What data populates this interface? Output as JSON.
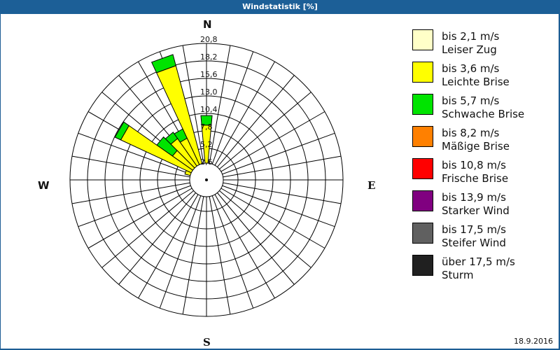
{
  "window": {
    "title": "Windstatistik [%]"
  },
  "footer": {
    "date": "18.9.2016"
  },
  "compass": {
    "n": "N",
    "e": "E",
    "s": "S",
    "w": "W"
  },
  "legend": [
    {
      "speed": "bis 2,1 m/s",
      "name": "Leiser Zug",
      "color": "#ffffc8"
    },
    {
      "speed": "bis 3,6 m/s",
      "name": "Leichte Brise",
      "color": "#ffff00"
    },
    {
      "speed": "bis 5,7 m/s",
      "name": "Schwache Brise",
      "color": "#00e400"
    },
    {
      "speed": "bis 8,2 m/s",
      "name": "Mäßige Brise",
      "color": "#ff8000"
    },
    {
      "speed": "bis 10,8 m/s",
      "name": "Frische Brise",
      "color": "#ff0000"
    },
    {
      "speed": "bis 13,9 m/s",
      "name": "Starker Wind",
      "color": "#800080"
    },
    {
      "speed": "bis 17,5 m/s",
      "name": "Steifer Wind",
      "color": "#606060"
    },
    {
      "speed": "über 17,5 m/s",
      "name": "Sturm",
      "color": "#202020"
    }
  ],
  "chart_data": {
    "type": "windrose",
    "title": "Windstatistik [%]",
    "radial_ticks": [
      "2,6",
      "5,2",
      "7,8",
      "10,4",
      "13,0",
      "15,6",
      "18,2",
      "20,8"
    ],
    "radial_range": [
      0,
      20.8
    ],
    "sector_width_deg": 10,
    "series_names": [
      "Leiser Zug",
      "Leichte Brise",
      "Schwache Brise"
    ],
    "series": [
      {
        "direction_deg": 0,
        "stacked_values": [
          0.6,
          8.0,
          1.5
        ]
      },
      {
        "direction_deg": 340,
        "stacked_values": [
          0.5,
          18.0,
          1.8
        ]
      },
      {
        "direction_deg": 330,
        "stacked_values": [
          0.5,
          6.7,
          1.6
        ]
      },
      {
        "direction_deg": 320,
        "stacked_values": [
          0.5,
          7.4,
          1.2
        ]
      },
      {
        "direction_deg": 310,
        "stacked_values": [
          0.5,
          6.0,
          3.0
        ]
      },
      {
        "direction_deg": 300,
        "stacked_values": [
          0.5,
          14.3,
          1.0
        ]
      },
      {
        "direction_deg": 290,
        "stacked_values": [
          2.0,
          1.5,
          0
        ]
      },
      {
        "direction_deg": 280,
        "stacked_values": [
          0.3,
          2.1,
          0
        ]
      }
    ]
  }
}
